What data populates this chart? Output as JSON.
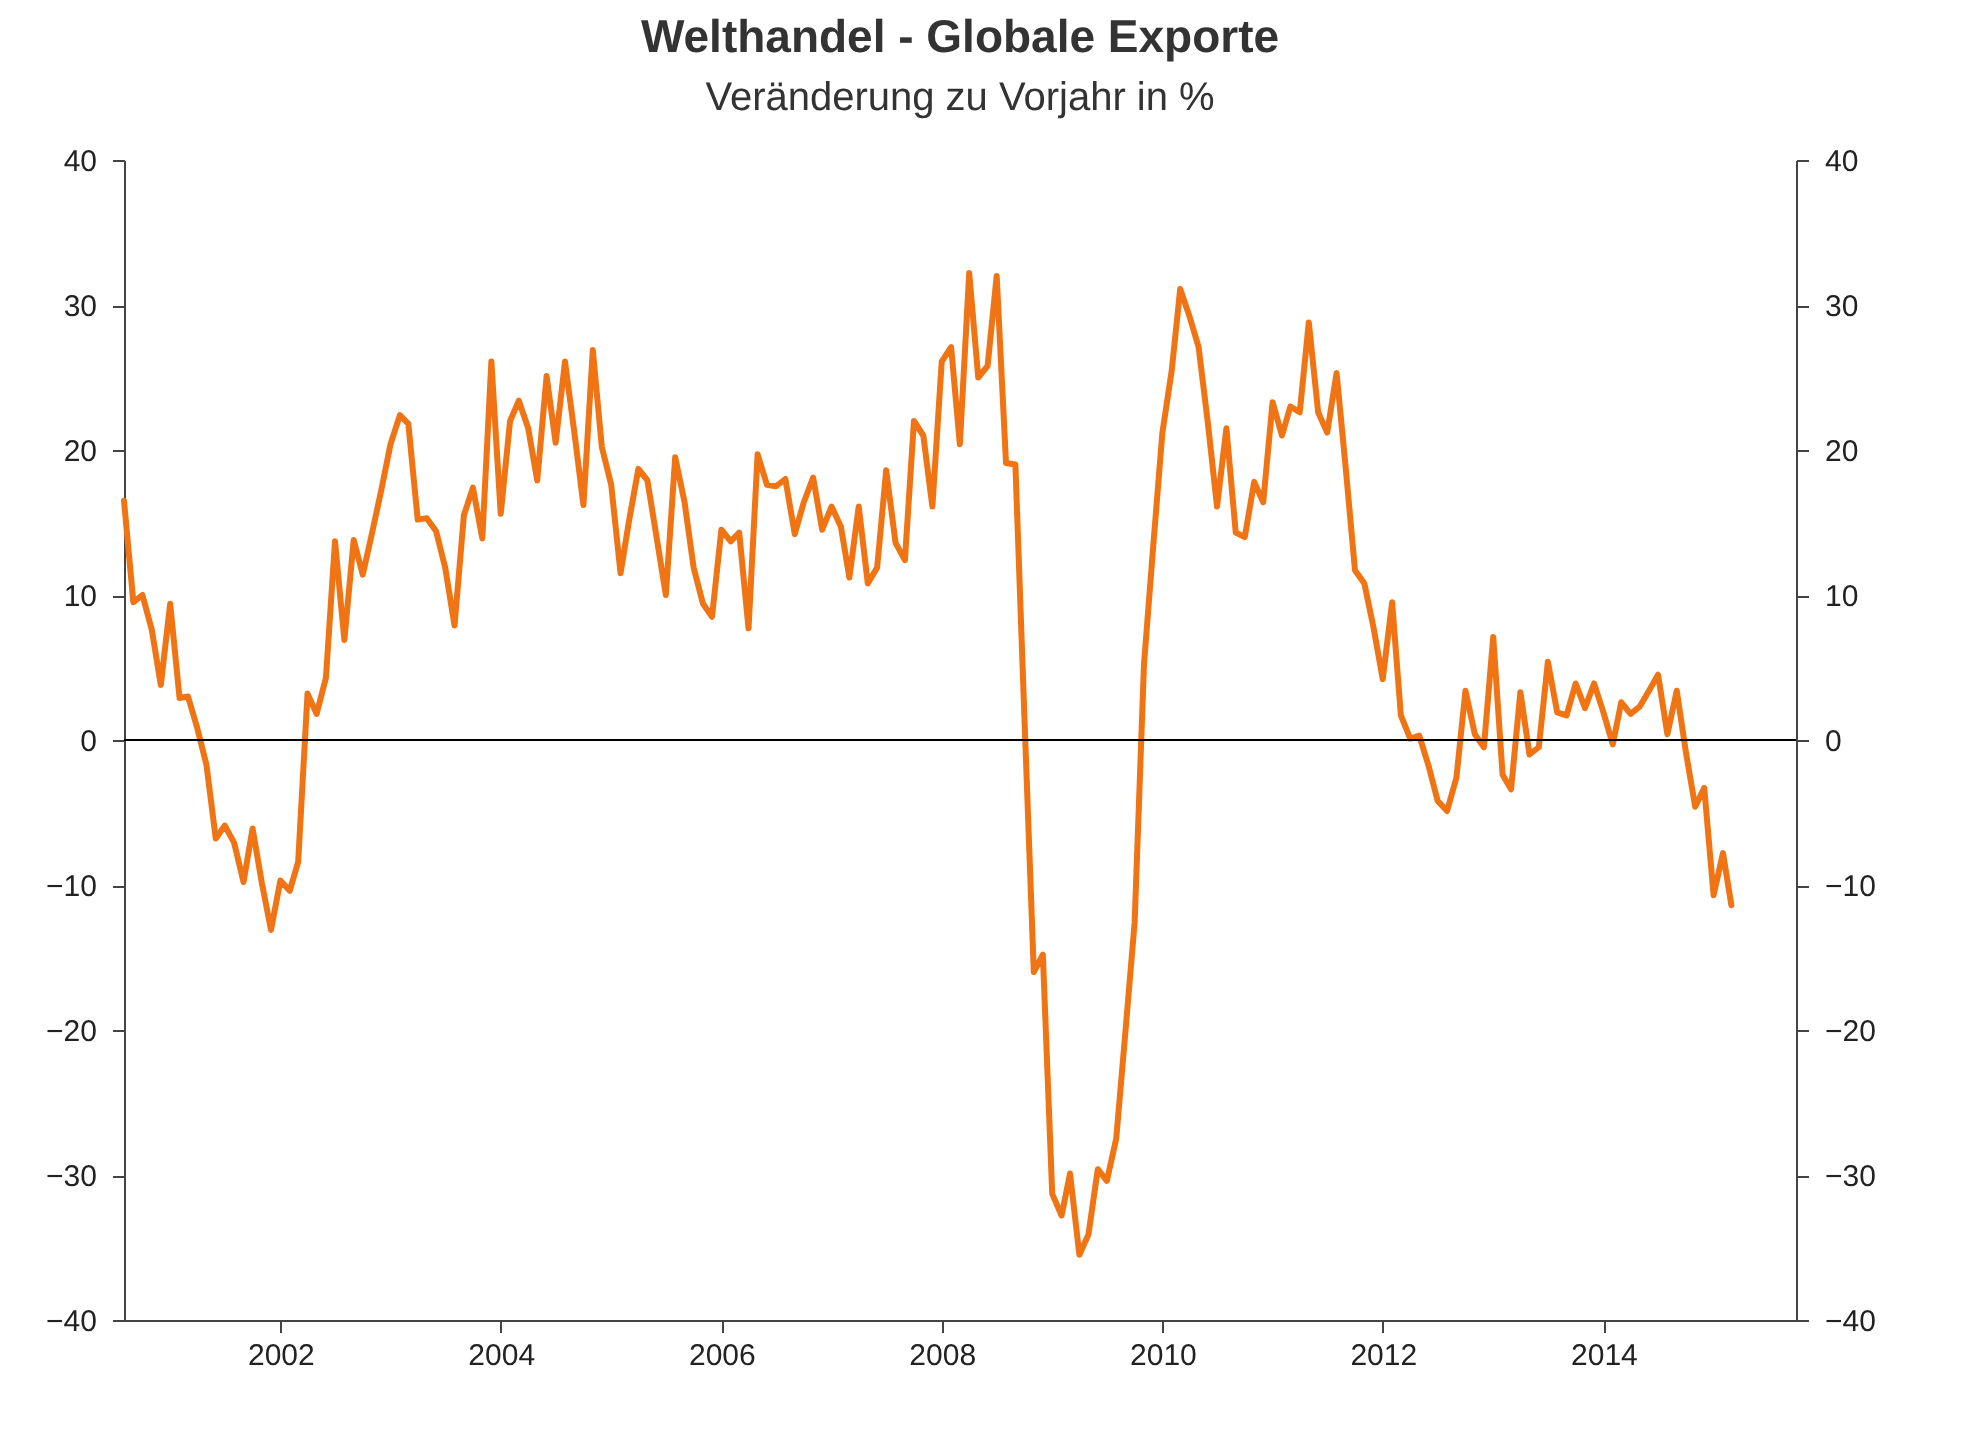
{
  "chart_data": {
    "type": "line",
    "title": "Welthandel - Globale Exporte",
    "subtitle": "Veränderung zu Vorjahr in %",
    "x": [
      "2000-08",
      "2000-09",
      "2000-10",
      "2000-11",
      "2000-12",
      "2001-01",
      "2001-02",
      "2001-03",
      "2001-04",
      "2001-05",
      "2001-06",
      "2001-07",
      "2001-08",
      "2001-09",
      "2001-10",
      "2001-11",
      "2001-12",
      "2002-01",
      "2002-02",
      "2002-03",
      "2002-04",
      "2002-05",
      "2002-06",
      "2002-07",
      "2002-08",
      "2002-09",
      "2002-10",
      "2002-11",
      "2002-12",
      "2003-01",
      "2003-02",
      "2003-03",
      "2003-04",
      "2003-05",
      "2003-06",
      "2003-07",
      "2003-08",
      "2003-09",
      "2003-10",
      "2003-11",
      "2003-12",
      "2004-01",
      "2004-02",
      "2004-03",
      "2004-04",
      "2004-05",
      "2004-06",
      "2004-07",
      "2004-08",
      "2004-09",
      "2004-10",
      "2004-11",
      "2004-12",
      "2005-01",
      "2005-02",
      "2005-03",
      "2005-04",
      "2005-05",
      "2005-06",
      "2005-07",
      "2005-08",
      "2005-09",
      "2005-10",
      "2005-11",
      "2005-12",
      "2006-01",
      "2006-02",
      "2006-03",
      "2006-04",
      "2006-05",
      "2006-06",
      "2006-07",
      "2006-08",
      "2006-09",
      "2006-10",
      "2006-11",
      "2006-12",
      "2007-01",
      "2007-02",
      "2007-03",
      "2007-04",
      "2007-05",
      "2007-06",
      "2007-07",
      "2007-08",
      "2007-09",
      "2007-10",
      "2007-11",
      "2007-12",
      "2008-01",
      "2008-02",
      "2008-03",
      "2008-04",
      "2008-05",
      "2008-06",
      "2008-07",
      "2008-08",
      "2008-09",
      "2008-10",
      "2008-11",
      "2008-12",
      "2009-01",
      "2009-02",
      "2009-03",
      "2009-04",
      "2009-05",
      "2009-06",
      "2009-07",
      "2009-08",
      "2009-09",
      "2009-10",
      "2009-11",
      "2009-12",
      "2010-01",
      "2010-02",
      "2010-03",
      "2010-04",
      "2010-05",
      "2010-06",
      "2010-07",
      "2010-08",
      "2010-09",
      "2010-10",
      "2010-11",
      "2010-12",
      "2011-01",
      "2011-02",
      "2011-03",
      "2011-04",
      "2011-05",
      "2011-06",
      "2011-07",
      "2011-08",
      "2011-09",
      "2011-10",
      "2011-11",
      "2011-12",
      "2012-01",
      "2012-02",
      "2012-03",
      "2012-04",
      "2012-05",
      "2012-06",
      "2012-07",
      "2012-08",
      "2012-09",
      "2012-10",
      "2012-11",
      "2012-12",
      "2013-01",
      "2013-02",
      "2013-03",
      "2013-04",
      "2013-05",
      "2013-06",
      "2013-07",
      "2013-08",
      "2013-09",
      "2013-10",
      "2013-11",
      "2013-12",
      "2014-01",
      "2014-02",
      "2014-03",
      "2014-04",
      "2014-05",
      "2014-06",
      "2014-07",
      "2014-08",
      "2014-09",
      "2014-10",
      "2014-11",
      "2014-12",
      "2015-01",
      "2015-02",
      "2015-03"
    ],
    "series": [
      {
        "color": "#f07314",
        "values": [
          16.5,
          9.5,
          10,
          7.6,
          3.8,
          9.4,
          2.9,
          3,
          0.8,
          -1.7,
          -6.8,
          -5.9,
          -7.1,
          -9.8,
          -6.1,
          -9.9,
          -13.1,
          -9.7,
          -10.4,
          -8.4,
          3.2,
          1.8,
          4.3,
          13.7,
          6.9,
          13.8,
          11.4,
          14.3,
          17.2,
          20.4,
          22.4,
          21.8,
          15.2,
          15.3,
          14.4,
          11.9,
          7.9,
          15.5,
          17.4,
          13.9,
          26.1,
          15.6,
          22,
          23.4,
          21.5,
          17.9,
          25.1,
          20.5,
          26.1,
          21.2,
          16.2,
          26.9,
          20.2,
          17.6,
          11.5,
          15.1,
          18.7,
          17.9,
          13.9,
          10,
          19.5,
          16.4,
          11.9,
          9.4,
          8.5,
          14.5,
          13.7,
          14.3,
          7.7,
          19.7,
          17.6,
          17.5,
          18,
          14.2,
          16.4,
          18.1,
          14.5,
          16.1,
          14.7,
          11.2,
          16.1,
          10.8,
          11.9,
          18.6,
          13.6,
          12.4,
          22,
          21,
          16.1,
          26.1,
          27.1,
          20.4,
          32.2,
          25,
          25.8,
          32,
          19.1,
          19,
          1.5,
          -16,
          -14.8,
          -31.3,
          -32.8,
          -29.9,
          -35.5,
          -34.1,
          -29.6,
          -30.4,
          -27.5,
          -20,
          -12.6,
          5.2,
          13.2,
          21.2,
          25.5,
          31.1,
          29.2,
          27.1,
          21.8,
          16.1,
          21.5,
          14.3,
          14,
          17.8,
          16.4,
          23.3,
          21,
          23,
          22.6,
          28.8,
          22.6,
          21.2,
          25.3,
          18.6,
          11.7,
          10.8,
          7.8,
          4.2,
          9.5,
          1.7,
          0.1,
          0.3,
          -1.8,
          -4.2,
          -4.9,
          -2.6,
          3.4,
          0.4,
          -0.5,
          7.1,
          -2.4,
          -3.4,
          3.3,
          -1,
          -0.5,
          5.4,
          1.9,
          1.7,
          3.9,
          2.2,
          3.9,
          1.9,
          -0.3,
          2.6,
          1.8,
          2.3,
          3.4,
          4.5,
          0.4,
          3.4,
          -0.8,
          -4.6,
          -3.3,
          -10.7,
          -7.8,
          -11.4
        ]
      }
    ],
    "xlim": [
      "2000-08",
      "2015-10"
    ],
    "xticks": [
      "2002",
      "2004",
      "2006",
      "2008",
      "2010",
      "2012",
      "2014"
    ],
    "ylim": [
      -40,
      40
    ],
    "yticks": [
      -40,
      -30,
      -20,
      -10,
      0,
      10,
      20,
      30,
      40
    ],
    "y2lim": [
      -40,
      40
    ],
    "y2ticks": [
      -40,
      -30,
      -20,
      -10,
      0,
      10,
      20,
      30,
      40
    ],
    "ref_lines": [
      {
        "axis": "y",
        "value": 0,
        "color": "#000000"
      }
    ],
    "grid": false,
    "marker": "none",
    "line_style": "solid"
  }
}
